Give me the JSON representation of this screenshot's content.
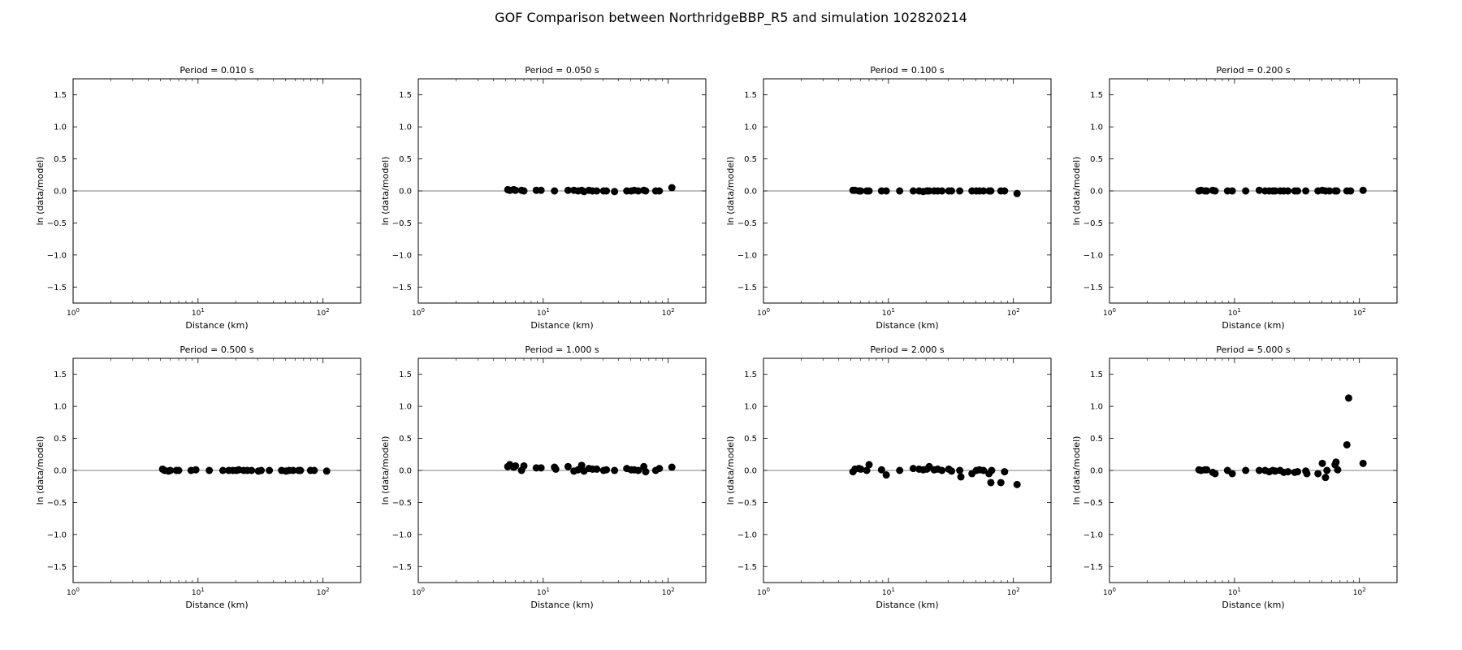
{
  "figure": {
    "title": "GOF Comparison between NorthridgeBBP_R5 and simulation 102820214"
  },
  "chart_data": [
    {
      "type": "scatter",
      "title": "Period = 0.010 s",
      "xlabel": "Distance (km)",
      "ylabel": "ln (data/model)",
      "xscale": "log",
      "xlim": [
        1,
        200
      ],
      "ylim": [
        -1.75,
        1.75
      ],
      "yticks": [
        -1.5,
        -1.0,
        -0.5,
        0.0,
        0.5,
        1.0,
        1.5
      ],
      "xticks": [
        "10^0",
        "10^1",
        "10^2"
      ],
      "reference_line": 0.0,
      "grid": false,
      "points": []
    },
    {
      "type": "scatter",
      "title": "Period = 0.050 s",
      "xlabel": "Distance (km)",
      "ylabel": "ln (data/model)",
      "xscale": "log",
      "xlim": [
        1,
        200
      ],
      "ylim": [
        -1.75,
        1.75
      ],
      "yticks": [
        -1.5,
        -1.0,
        -0.5,
        0.0,
        0.5,
        1.0,
        1.5
      ],
      "xticks": [
        "10^0",
        "10^1",
        "10^2"
      ],
      "reference_line": 0.0,
      "grid": false,
      "points": [
        [
          5.2,
          0.02
        ],
        [
          5.4,
          0.01
        ],
        [
          5.8,
          0.02
        ],
        [
          6.0,
          0.01
        ],
        [
          6.7,
          0.01
        ],
        [
          7.0,
          0.0
        ],
        [
          8.8,
          0.01
        ],
        [
          9.6,
          0.01
        ],
        [
          12.3,
          0.0
        ],
        [
          15.8,
          0.01
        ],
        [
          17.6,
          0.01
        ],
        [
          19.0,
          0.0
        ],
        [
          20.3,
          0.01
        ],
        [
          21.2,
          -0.01
        ],
        [
          23.2,
          0.01
        ],
        [
          24.8,
          0.0
        ],
        [
          26.8,
          0.0
        ],
        [
          30.4,
          0.0
        ],
        [
          32.0,
          0.0
        ],
        [
          37.2,
          -0.01
        ],
        [
          46.6,
          0.0
        ],
        [
          50.5,
          0.0
        ],
        [
          53.5,
          0.01
        ],
        [
          57.6,
          0.0
        ],
        [
          63.8,
          0.01
        ],
        [
          66.0,
          0.0
        ],
        [
          79.4,
          0.0
        ],
        [
          85.0,
          0.0
        ],
        [
          107.0,
          0.05
        ]
      ]
    },
    {
      "type": "scatter",
      "title": "Period = 0.100 s",
      "xlabel": "Distance (km)",
      "ylabel": "ln (data/model)",
      "xscale": "log",
      "xlim": [
        1,
        200
      ],
      "ylim": [
        -1.75,
        1.75
      ],
      "yticks": [
        -1.5,
        -1.0,
        -0.5,
        0.0,
        0.5,
        1.0,
        1.5
      ],
      "xticks": [
        "10^0",
        "10^1",
        "10^2"
      ],
      "reference_line": 0.0,
      "grid": false,
      "points": [
        [
          5.2,
          0.01
        ],
        [
          5.4,
          0.01
        ],
        [
          5.8,
          0.0
        ],
        [
          6.0,
          0.0
        ],
        [
          6.7,
          0.0
        ],
        [
          7.0,
          0.0
        ],
        [
          8.8,
          0.0
        ],
        [
          9.6,
          0.0
        ],
        [
          12.3,
          0.0
        ],
        [
          15.8,
          0.0
        ],
        [
          17.6,
          0.0
        ],
        [
          19.0,
          -0.01
        ],
        [
          20.3,
          0.0
        ],
        [
          21.2,
          0.0
        ],
        [
          23.2,
          0.0
        ],
        [
          24.8,
          0.0
        ],
        [
          26.8,
          0.0
        ],
        [
          30.4,
          0.0
        ],
        [
          32.0,
          0.0
        ],
        [
          37.2,
          0.0
        ],
        [
          46.6,
          0.0
        ],
        [
          50.5,
          0.0
        ],
        [
          53.5,
          0.0
        ],
        [
          57.6,
          0.0
        ],
        [
          63.8,
          0.0
        ],
        [
          66.0,
          0.0
        ],
        [
          79.4,
          0.0
        ],
        [
          85.0,
          0.0
        ],
        [
          107.0,
          -0.04
        ]
      ]
    },
    {
      "type": "scatter",
      "title": "Period = 0.200 s",
      "xlabel": "Distance (km)",
      "ylabel": "ln (data/model)",
      "xscale": "log",
      "xlim": [
        1,
        200
      ],
      "ylim": [
        -1.75,
        1.75
      ],
      "yticks": [
        -1.5,
        -1.0,
        -0.5,
        0.0,
        0.5,
        1.0,
        1.5
      ],
      "xticks": [
        "10^0",
        "10^1",
        "10^2"
      ],
      "reference_line": 0.0,
      "grid": false,
      "points": [
        [
          5.2,
          0.0
        ],
        [
          5.4,
          0.01
        ],
        [
          5.8,
          0.0
        ],
        [
          6.0,
          0.0
        ],
        [
          6.7,
          0.01
        ],
        [
          7.0,
          0.0
        ],
        [
          8.8,
          0.0
        ],
        [
          9.6,
          0.0
        ],
        [
          12.3,
          0.0
        ],
        [
          15.8,
          0.01
        ],
        [
          17.6,
          0.0
        ],
        [
          19.0,
          0.0
        ],
        [
          20.3,
          0.0
        ],
        [
          21.2,
          0.0
        ],
        [
          23.2,
          0.0
        ],
        [
          24.8,
          0.0
        ],
        [
          26.8,
          0.0
        ],
        [
          30.4,
          0.0
        ],
        [
          32.0,
          0.0
        ],
        [
          37.2,
          0.0
        ],
        [
          46.6,
          0.0
        ],
        [
          50.5,
          0.01
        ],
        [
          53.5,
          0.0
        ],
        [
          57.6,
          0.0
        ],
        [
          63.8,
          0.0
        ],
        [
          66.0,
          0.0
        ],
        [
          79.4,
          0.0
        ],
        [
          85.0,
          0.0
        ],
        [
          107.0,
          0.01
        ]
      ]
    },
    {
      "type": "scatter",
      "title": "Period = 0.500 s",
      "xlabel": "Distance (km)",
      "ylabel": "ln (data/model)",
      "xscale": "log",
      "xlim": [
        1,
        200
      ],
      "ylim": [
        -1.75,
        1.75
      ],
      "yticks": [
        -1.5,
        -1.0,
        -0.5,
        0.0,
        0.5,
        1.0,
        1.5
      ],
      "xticks": [
        "10^0",
        "10^1",
        "10^2"
      ],
      "reference_line": 0.0,
      "grid": false,
      "points": [
        [
          5.2,
          0.02
        ],
        [
          5.4,
          0.0
        ],
        [
          5.8,
          -0.01
        ],
        [
          6.0,
          0.0
        ],
        [
          6.7,
          0.0
        ],
        [
          7.0,
          0.0
        ],
        [
          8.8,
          0.0
        ],
        [
          9.6,
          0.01
        ],
        [
          12.3,
          0.0
        ],
        [
          15.8,
          0.0
        ],
        [
          17.6,
          0.0
        ],
        [
          19.0,
          0.0
        ],
        [
          20.3,
          0.0
        ],
        [
          21.2,
          0.01
        ],
        [
          23.2,
          0.0
        ],
        [
          24.8,
          0.0
        ],
        [
          26.8,
          0.0
        ],
        [
          30.4,
          -0.01
        ],
        [
          32.0,
          0.0
        ],
        [
          37.2,
          0.0
        ],
        [
          46.6,
          0.0
        ],
        [
          50.5,
          -0.01
        ],
        [
          53.5,
          0.0
        ],
        [
          57.6,
          0.0
        ],
        [
          63.8,
          0.0
        ],
        [
          66.0,
          0.0
        ],
        [
          79.4,
          0.0
        ],
        [
          85.0,
          0.0
        ],
        [
          107.0,
          -0.01
        ]
      ]
    },
    {
      "type": "scatter",
      "title": "Period = 1.000 s",
      "xlabel": "Distance (km)",
      "ylabel": "ln (data/model)",
      "xscale": "log",
      "xlim": [
        1,
        200
      ],
      "ylim": [
        -1.75,
        1.75
      ],
      "yticks": [
        -1.5,
        -1.0,
        -0.5,
        0.0,
        0.5,
        1.0,
        1.5
      ],
      "xticks": [
        "10^0",
        "10^1",
        "10^2"
      ],
      "reference_line": 0.0,
      "grid": false,
      "points": [
        [
          5.2,
          0.06
        ],
        [
          5.4,
          0.09
        ],
        [
          5.8,
          0.05
        ],
        [
          6.0,
          0.07
        ],
        [
          6.7,
          0.0
        ],
        [
          7.0,
          0.07
        ],
        [
          8.8,
          0.04
        ],
        [
          9.6,
          0.04
        ],
        [
          12.3,
          0.05
        ],
        [
          12.6,
          0.02
        ],
        [
          15.8,
          0.06
        ],
        [
          17.6,
          -0.01
        ],
        [
          19.0,
          0.01
        ],
        [
          20.3,
          0.08
        ],
        [
          21.2,
          -0.01
        ],
        [
          23.2,
          0.03
        ],
        [
          24.8,
          0.02
        ],
        [
          26.8,
          0.02
        ],
        [
          30.4,
          0.0
        ],
        [
          32.0,
          0.01
        ],
        [
          37.2,
          0.0
        ],
        [
          46.6,
          0.03
        ],
        [
          50.5,
          0.01
        ],
        [
          53.5,
          0.01
        ],
        [
          57.6,
          0.0
        ],
        [
          63.8,
          0.06
        ],
        [
          66.0,
          -0.02
        ],
        [
          79.4,
          0.0
        ],
        [
          85.0,
          0.03
        ],
        [
          107.0,
          0.05
        ]
      ]
    },
    {
      "type": "scatter",
      "title": "Period = 2.000 s",
      "xlabel": "Distance (km)",
      "ylabel": "ln (data/model)",
      "xscale": "log",
      "xlim": [
        1,
        200
      ],
      "ylim": [
        -1.75,
        1.75
      ],
      "yticks": [
        -1.5,
        -1.0,
        -0.5,
        0.0,
        0.5,
        1.0,
        1.5
      ],
      "xticks": [
        "10^0",
        "10^1",
        "10^2"
      ],
      "reference_line": 0.0,
      "grid": false,
      "points": [
        [
          5.2,
          -0.02
        ],
        [
          5.4,
          0.02
        ],
        [
          5.8,
          0.03
        ],
        [
          6.0,
          0.02
        ],
        [
          6.7,
          0.0
        ],
        [
          7.0,
          0.09
        ],
        [
          8.8,
          0.01
        ],
        [
          9.6,
          -0.07
        ],
        [
          12.3,
          0.0
        ],
        [
          15.8,
          0.03
        ],
        [
          17.6,
          0.02
        ],
        [
          19.0,
          0.01
        ],
        [
          20.3,
          0.02
        ],
        [
          21.2,
          0.06
        ],
        [
          23.2,
          0.01
        ],
        [
          24.8,
          0.02
        ],
        [
          26.8,
          0.0
        ],
        [
          30.4,
          0.02
        ],
        [
          32.0,
          -0.01
        ],
        [
          37.2,
          0.0
        ],
        [
          38.0,
          -0.1
        ],
        [
          46.6,
          -0.05
        ],
        [
          50.5,
          0.0
        ],
        [
          53.5,
          0.01
        ],
        [
          57.6,
          0.0
        ],
        [
          63.8,
          -0.05
        ],
        [
          66.0,
          -0.19
        ],
        [
          67.0,
          0.0
        ],
        [
          79.4,
          -0.19
        ],
        [
          85.0,
          -0.02
        ],
        [
          107.0,
          -0.22
        ]
      ]
    },
    {
      "type": "scatter",
      "title": "Period = 5.000 s",
      "xlabel": "Distance (km)",
      "ylabel": "ln (data/model)",
      "xscale": "log",
      "xlim": [
        1,
        200
      ],
      "ylim": [
        -1.75,
        1.75
      ],
      "yticks": [
        -1.5,
        -1.0,
        -0.5,
        0.0,
        0.5,
        1.0,
        1.5
      ],
      "xticks": [
        "10^0",
        "10^1",
        "10^2"
      ],
      "reference_line": 0.0,
      "grid": false,
      "points": [
        [
          5.2,
          0.01
        ],
        [
          5.4,
          0.0
        ],
        [
          5.8,
          0.01
        ],
        [
          6.0,
          0.01
        ],
        [
          6.7,
          -0.03
        ],
        [
          7.0,
          -0.05
        ],
        [
          8.8,
          0.0
        ],
        [
          9.6,
          -0.05
        ],
        [
          12.3,
          0.0
        ],
        [
          15.8,
          0.0
        ],
        [
          17.6,
          0.0
        ],
        [
          19.0,
          -0.02
        ],
        [
          20.3,
          0.0
        ],
        [
          21.2,
          -0.01
        ],
        [
          23.2,
          0.0
        ],
        [
          24.8,
          -0.03
        ],
        [
          26.8,
          -0.02
        ],
        [
          30.4,
          -0.03
        ],
        [
          32.0,
          -0.02
        ],
        [
          37.2,
          -0.01
        ],
        [
          38.0,
          -0.05
        ],
        [
          46.6,
          -0.05
        ],
        [
          50.5,
          0.11
        ],
        [
          53.5,
          -0.11
        ],
        [
          55.0,
          0.0
        ],
        [
          63.8,
          0.09
        ],
        [
          65.0,
          0.13
        ],
        [
          67.0,
          0.01
        ],
        [
          79.4,
          0.4
        ],
        [
          82.0,
          1.13
        ],
        [
          107.0,
          0.11
        ]
      ]
    }
  ]
}
